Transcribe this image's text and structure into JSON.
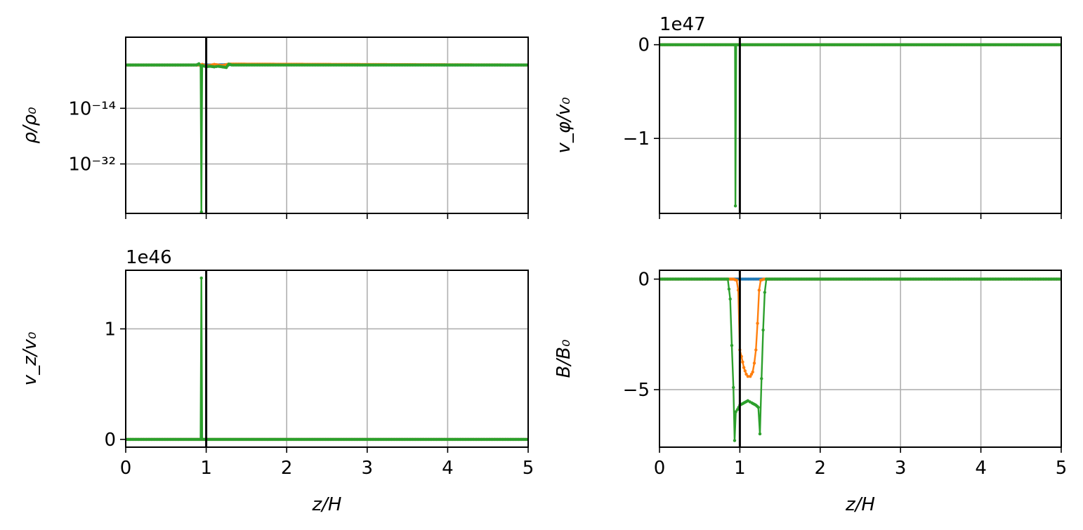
{
  "chart_data": [
    {
      "id": "density",
      "type": "line",
      "ylabel": "ρ/ρ₀",
      "xlabel": "",
      "yscale": "log",
      "xlim": [
        0,
        5
      ],
      "ylim": [
        -48,
        9
      ],
      "yticks": [
        {
          "v": -14,
          "label": "10⁻¹⁴"
        },
        {
          "v": -32,
          "label": "10⁻³²"
        }
      ],
      "xticks": [
        0,
        1,
        2,
        3,
        4,
        5
      ],
      "show_xtick_labels": false,
      "offset_text": "",
      "grid": true,
      "vline_x": 1.0,
      "series": [
        {
          "color": "#1f77b4",
          "points": [
            [
              0,
              0
            ],
            [
              0.9,
              0
            ],
            [
              0.95,
              0.1
            ],
            [
              1.05,
              0
            ],
            [
              1.25,
              0.1
            ],
            [
              5,
              0
            ]
          ]
        },
        {
          "color": "#ff7f0e",
          "points": [
            [
              0,
              0
            ],
            [
              0.9,
              0
            ],
            [
              0.95,
              0.2
            ],
            [
              1.0,
              -0.4
            ],
            [
              1.1,
              0.2
            ],
            [
              1.2,
              -0.2
            ],
            [
              1.28,
              0.3
            ],
            [
              5,
              0
            ]
          ]
        },
        {
          "color": "#2ca02c",
          "points": [
            [
              0,
              0
            ],
            [
              0.88,
              0
            ],
            [
              0.91,
              0.4
            ],
            [
              0.93,
              -0.2
            ],
            [
              0.94,
              -47.5
            ],
            [
              0.95,
              -0.2
            ],
            [
              1.0,
              -0.5
            ],
            [
              1.05,
              -0.4
            ],
            [
              1.1,
              -0.6
            ],
            [
              1.15,
              -0.4
            ],
            [
              1.2,
              -0.6
            ],
            [
              1.25,
              -0.8
            ],
            [
              1.28,
              0.3
            ],
            [
              1.32,
              0
            ],
            [
              5,
              0
            ]
          ]
        }
      ]
    },
    {
      "id": "vphi",
      "type": "line",
      "ylabel": "v_φ/v₀",
      "xlabel": "",
      "yscale": "linear",
      "xlim": [
        0,
        5
      ],
      "ylim": [
        -1.8,
        0.08
      ],
      "yticks": [
        {
          "v": 0,
          "label": "0"
        },
        {
          "v": -1,
          "label": "−1"
        }
      ],
      "xticks": [
        0,
        1,
        2,
        3,
        4,
        5
      ],
      "show_xtick_labels": false,
      "offset_text": "1e47",
      "grid": true,
      "vline_x": 1.0,
      "series": [
        {
          "color": "#1f77b4",
          "points": [
            [
              0,
              0
            ],
            [
              5,
              0
            ]
          ]
        },
        {
          "color": "#ff7f0e",
          "points": [
            [
              0,
              0
            ],
            [
              5,
              0
            ]
          ]
        },
        {
          "color": "#2ca02c",
          "points": [
            [
              0,
              0
            ],
            [
              0.92,
              0
            ],
            [
              0.94,
              0
            ],
            [
              0.945,
              -1.72
            ],
            [
              0.955,
              0
            ],
            [
              5,
              0
            ]
          ]
        }
      ]
    },
    {
      "id": "vz",
      "type": "line",
      "ylabel": "v_z/v₀",
      "xlabel": "z/H",
      "yscale": "linear",
      "xlim": [
        0,
        5
      ],
      "ylim": [
        -0.07,
        1.53
      ],
      "yticks": [
        {
          "v": 0,
          "label": "0"
        },
        {
          "v": 1,
          "label": "1"
        }
      ],
      "xticks": [
        0,
        1,
        2,
        3,
        4,
        5
      ],
      "show_xtick_labels": true,
      "offset_text": "1e46",
      "grid": true,
      "vline_x": 1.0,
      "series": [
        {
          "color": "#1f77b4",
          "points": [
            [
              0,
              0
            ],
            [
              5,
              0
            ]
          ]
        },
        {
          "color": "#ff7f0e",
          "points": [
            [
              0,
              0
            ],
            [
              5,
              0
            ]
          ]
        },
        {
          "color": "#2ca02c",
          "points": [
            [
              0,
              0
            ],
            [
              0.93,
              0
            ],
            [
              0.94,
              1.46
            ],
            [
              0.95,
              0
            ],
            [
              5,
              0
            ]
          ]
        }
      ]
    },
    {
      "id": "bfield",
      "type": "line",
      "ylabel": "B/B₀",
      "xlabel": "z/H",
      "yscale": "linear",
      "xlim": [
        0,
        5
      ],
      "ylim": [
        -7.6,
        0.4
      ],
      "yticks": [
        {
          "v": 0,
          "label": "0"
        },
        {
          "v": -5,
          "label": "−5"
        }
      ],
      "xticks": [
        0,
        1,
        2,
        3,
        4,
        5
      ],
      "show_xtick_labels": true,
      "offset_text": "",
      "grid": true,
      "vline_x": 1.0,
      "series": [
        {
          "color": "#1f77b4",
          "points": [
            [
              0,
              0
            ],
            [
              0.95,
              0
            ],
            [
              1.25,
              0
            ],
            [
              5,
              0
            ]
          ]
        },
        {
          "color": "#ff7f0e",
          "points": [
            [
              0,
              0
            ],
            [
              0.92,
              0
            ],
            [
              0.96,
              -0.05
            ],
            [
              0.98,
              -0.5
            ],
            [
              1.0,
              -3.2
            ],
            [
              1.02,
              -3.5
            ],
            [
              1.05,
              -4.0
            ],
            [
              1.08,
              -4.3
            ],
            [
              1.1,
              -4.4
            ],
            [
              1.13,
              -4.4
            ],
            [
              1.16,
              -4.2
            ],
            [
              1.18,
              -3.8
            ],
            [
              1.2,
              -3.2
            ],
            [
              1.22,
              -2.0
            ],
            [
              1.24,
              -0.5
            ],
            [
              1.26,
              -0.05
            ],
            [
              1.3,
              0
            ],
            [
              5,
              0
            ]
          ]
        },
        {
          "color": "#2ca02c",
          "points": [
            [
              0,
              0
            ],
            [
              0.85,
              0
            ],
            [
              0.88,
              -0.9
            ],
            [
              0.9,
              -3.0
            ],
            [
              0.92,
              -4.9
            ],
            [
              0.935,
              -7.3
            ],
            [
              0.95,
              -6.0
            ],
            [
              0.97,
              -5.9
            ],
            [
              1.0,
              -5.7
            ],
            [
              1.05,
              -5.6
            ],
            [
              1.1,
              -5.5
            ],
            [
              1.15,
              -5.6
            ],
            [
              1.2,
              -5.7
            ],
            [
              1.23,
              -5.8
            ],
            [
              1.25,
              -7.0
            ],
            [
              1.27,
              -4.5
            ],
            [
              1.29,
              -2.3
            ],
            [
              1.31,
              -0.6
            ],
            [
              1.33,
              0
            ],
            [
              5,
              0
            ]
          ]
        }
      ]
    }
  ]
}
